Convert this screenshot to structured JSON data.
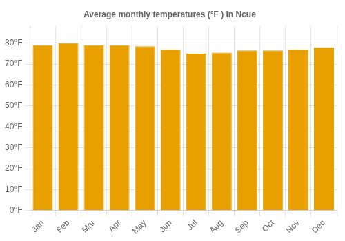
{
  "chart_data": {
    "type": "bar",
    "title": "Average monthly temperatures (°F ) in Ncue",
    "categories": [
      "Jan",
      "Feb",
      "Mar",
      "Apr",
      "May",
      "Jun",
      "Jul",
      "Aug",
      "Sep",
      "Oct",
      "Nov",
      "Dec"
    ],
    "values": [
      79,
      80,
      79,
      79,
      78.5,
      77,
      75,
      75.5,
      76.5,
      76.5,
      77,
      78
    ],
    "color": "#E8A000",
    "ylim": [
      0,
      88
    ],
    "yticks": [
      {
        "value": 0,
        "label": "0°F"
      },
      {
        "value": 10,
        "label": "10°F"
      },
      {
        "value": 20,
        "label": "20°F"
      },
      {
        "value": 30,
        "label": "30°F"
      },
      {
        "value": 40,
        "label": "40°F"
      },
      {
        "value": 50,
        "label": "50°F"
      },
      {
        "value": 60,
        "label": "60°F"
      },
      {
        "value": 70,
        "label": "70°F"
      },
      {
        "value": 80,
        "label": "80°F"
      }
    ],
    "grid": true
  }
}
